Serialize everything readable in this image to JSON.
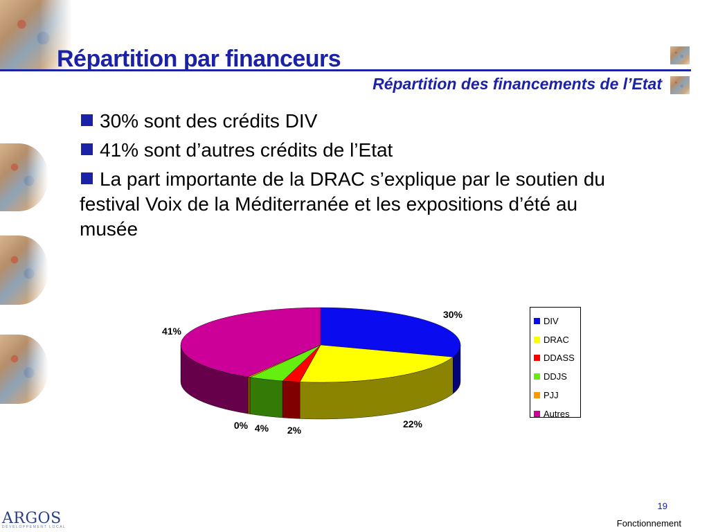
{
  "slide": {
    "title": "Répartition par financeurs",
    "subtitle": "Répartition des financements de l’Etat",
    "bullets": [
      "30% sont des crédits DIV",
      "41% sont d’autres crédits de l’Etat",
      "La part importante de la DRAC s’explique par le soutien du festival Voix de la Méditerranée et les expositions d’été au musée"
    ],
    "page_number": "19",
    "footer_section": "Fonctionnement",
    "logo_text": "ARGOS",
    "logo_tagline": "DEVELOPPEMENT LOCAL"
  },
  "colors": {
    "title": "#1c22a6",
    "bullet": "#1c22a6"
  },
  "chart_data": {
    "type": "pie",
    "title": "",
    "legend_position": "right",
    "series": [
      {
        "name": "DIV",
        "value": 30,
        "label": "30%",
        "color": "#0b0bf0",
        "dark": "#040478"
      },
      {
        "name": "DRAC",
        "value": 22,
        "label": "22%",
        "color": "#ffff00",
        "dark": "#8a8400"
      },
      {
        "name": "DDASS",
        "value": 2,
        "label": "2%",
        "color": "#ff0000",
        "dark": "#800000"
      },
      {
        "name": "DDJS",
        "value": 4,
        "label": "4%",
        "color": "#66ee11",
        "dark": "#337a06"
      },
      {
        "name": "PJJ",
        "value": 0.3,
        "label": "0%",
        "color": "#ff9900",
        "dark": "#7a4a00"
      },
      {
        "name": "Autres",
        "value": 41,
        "label": "41%",
        "color": "#cc0099",
        "dark": "#66004a"
      }
    ]
  }
}
